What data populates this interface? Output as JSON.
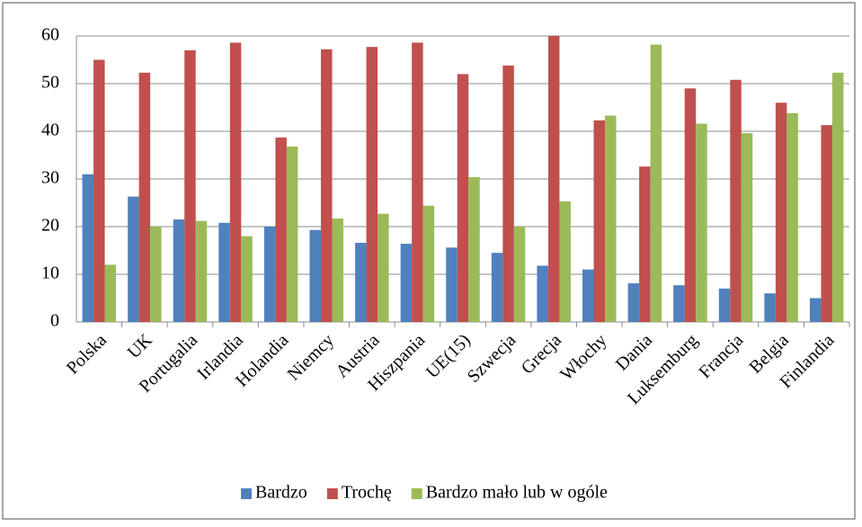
{
  "chart_data": {
    "type": "bar",
    "categories": [
      "Polska",
      "UK",
      "Portugalia",
      "Irlandia",
      "Holandia",
      "Niemcy",
      "Austria",
      "Hiszpania",
      "UE(15)",
      "Szwecja",
      "Grecja",
      "Włochy",
      "Dania",
      "Luksemburg",
      "Francja",
      "Belgia",
      "Finlandia"
    ],
    "series": [
      {
        "name": "Bardzo",
        "color": "#4f81bd",
        "values": [
          31,
          26.3,
          21.5,
          20.8,
          20,
          19.3,
          16.6,
          16.4,
          15.6,
          14.5,
          11.8,
          11,
          8.1,
          7.7,
          7,
          6,
          5
        ]
      },
      {
        "name": "Trochę",
        "color": "#c0504d",
        "values": [
          55,
          52.3,
          57,
          58.6,
          38.7,
          57.2,
          57.7,
          58.6,
          52,
          53.8,
          60,
          42.3,
          32.6,
          49,
          50.8,
          46,
          41.3
        ]
      },
      {
        "name": "Bardzo mało lub w ogóle",
        "color": "#9bbb59",
        "values": [
          12,
          20,
          21.2,
          18,
          36.8,
          21.7,
          22.7,
          24.4,
          30.4,
          20,
          25.3,
          43.3,
          58.2,
          41.6,
          39.6,
          43.8,
          52.3
        ]
      }
    ],
    "ylim": [
      0,
      60
    ],
    "yticks": [
      0,
      10,
      20,
      30,
      40,
      50,
      60
    ],
    "grid": true,
    "legend": "bottom"
  }
}
